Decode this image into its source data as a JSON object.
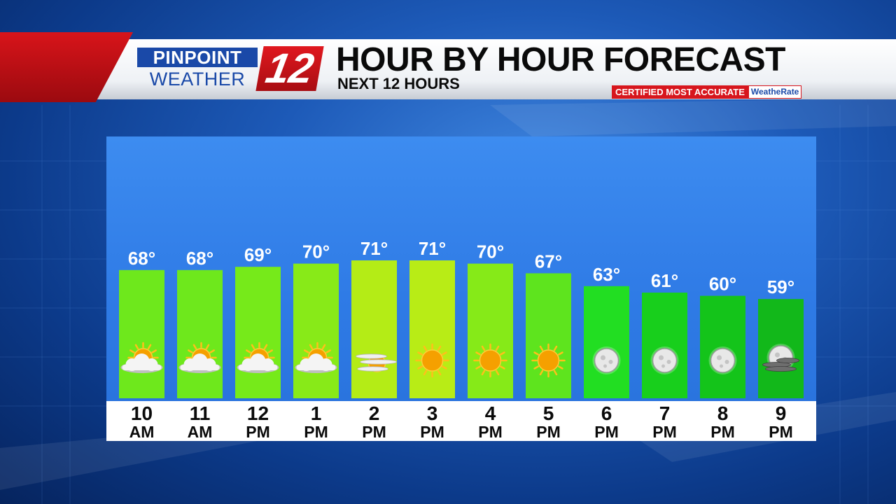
{
  "header": {
    "logo_top": "PINPOINT",
    "logo_bottom": "WEATHER",
    "logo_number": "12",
    "title": "HOUR BY HOUR FORECAST",
    "subtitle": "NEXT 12 HOURS",
    "badge_text": "CERTIFIED MOST ACCURATE",
    "badge_brand": "WeatheRate"
  },
  "chart_data": {
    "type": "bar",
    "categories": [
      "10 AM",
      "11 AM",
      "12 PM",
      "1 PM",
      "2 PM",
      "3 PM",
      "4 PM",
      "5 PM",
      "6 PM",
      "7 PM",
      "8 PM",
      "9 PM"
    ],
    "hours": [
      "10",
      "11",
      "12",
      "1",
      "2",
      "3",
      "4",
      "5",
      "6",
      "7",
      "8",
      "9"
    ],
    "periods": [
      "AM",
      "AM",
      "PM",
      "PM",
      "PM",
      "PM",
      "PM",
      "PM",
      "PM",
      "PM",
      "PM",
      "PM"
    ],
    "values": [
      68,
      68,
      69,
      70,
      71,
      71,
      70,
      67,
      63,
      61,
      60,
      59
    ],
    "value_labels": [
      "68°",
      "68°",
      "69°",
      "70°",
      "71°",
      "71°",
      "70°",
      "67°",
      "63°",
      "61°",
      "60°",
      "59°"
    ],
    "unit": "°",
    "conditions": [
      "partly-sunny-icon",
      "partly-sunny-icon",
      "partly-sunny-icon",
      "partly-sunny-icon",
      "hazy-sun-icon",
      "sunny-icon",
      "sunny-icon",
      "sunny-icon",
      "clear-night-icon",
      "clear-night-icon",
      "clear-night-icon",
      "partly-cloudy-night-icon"
    ],
    "bar_colors": [
      "#6ee81c",
      "#6ee81c",
      "#76ea1a",
      "#88ea18",
      "#b4ec16",
      "#b8ec16",
      "#86ea18",
      "#5ee41e",
      "#22de22",
      "#18cf1c",
      "#14c41a",
      "#12b81a"
    ],
    "colors": {
      "sun": "#f5a000",
      "sun_rays": "#ffbf1a",
      "cloud": "#f4f4f4",
      "moon": "#e8e8e8",
      "label_strip": "#ffffff"
    }
  }
}
